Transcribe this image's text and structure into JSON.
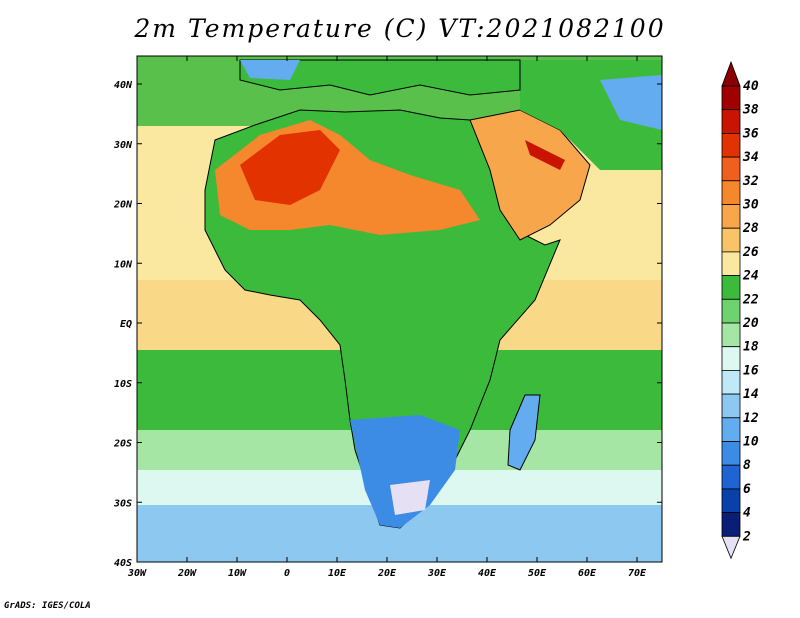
{
  "title": "2m Temperature (C) VT:2021082100",
  "footer": "GrADS: IGES/COLA",
  "map": {
    "lon_labels": [
      "30W",
      "20W",
      "10W",
      "0",
      "10E",
      "20E",
      "30E",
      "40E",
      "50E",
      "60E",
      "70E"
    ],
    "lat_labels": [
      "40N",
      "30N",
      "20N",
      "10N",
      "EQ",
      "10S",
      "20S",
      "30S",
      "40S"
    ]
  },
  "colorbar": {
    "labels": [
      "40",
      "38",
      "36",
      "34",
      "32",
      "30",
      "28",
      "26",
      "24",
      "22",
      "20",
      "18",
      "16",
      "14",
      "12",
      "10",
      "8",
      "6",
      "4",
      "2"
    ],
    "colors": [
      "#a00000",
      "#c81400",
      "#e13200",
      "#f05f1e",
      "#f5872d",
      "#f7a64b",
      "#f9c465",
      "#fbe8a0",
      "#3cba3c",
      "#6ed26e",
      "#a5e6a5",
      "#dcf8f0",
      "#bfe8f8",
      "#8cc8f0",
      "#64acf0",
      "#3c8ce6",
      "#1e64d2",
      "#0a40aa",
      "#0a1e78"
    ],
    "top_arrow_color": "#8b0000",
    "bottom_arrow_color": "#e6e0f5"
  }
}
